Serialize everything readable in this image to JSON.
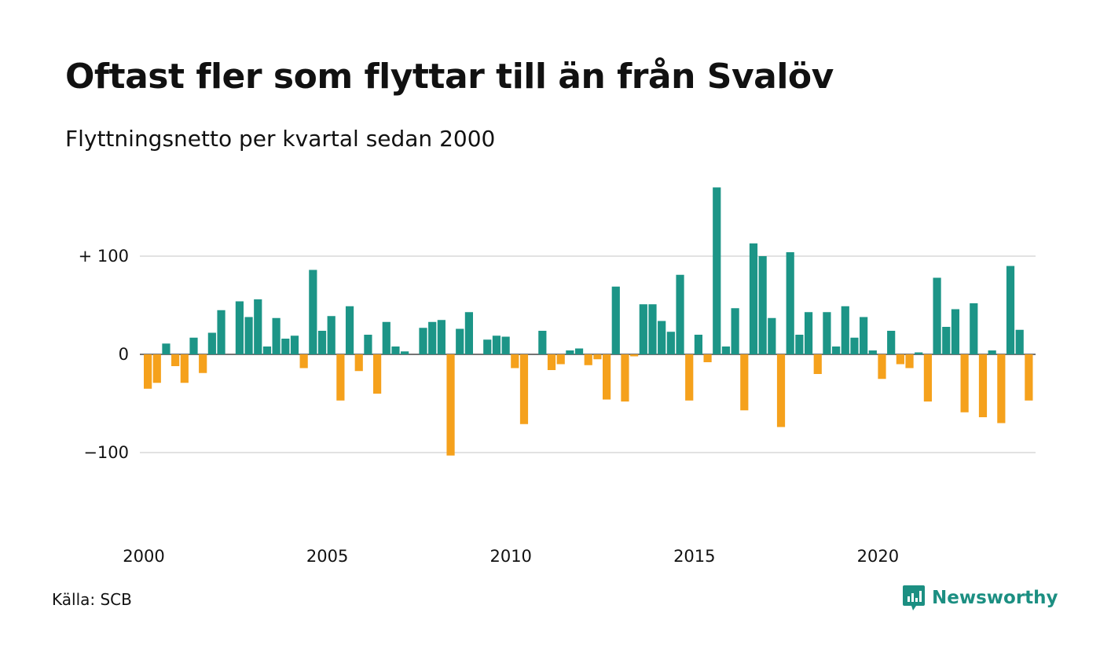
{
  "title": "Oftast fler som flyttar till än från Svalöv",
  "subtitle": "Flyttningsnetto per kvartal sedan 2000",
  "source": "Källa: SCB",
  "brand": {
    "name": "Newsworthy",
    "icon": "newsworthy-logo-icon",
    "color": "#1c8f82"
  },
  "colors": {
    "positive": "#1c9587",
    "negative": "#f5a11c",
    "grid": "#e2e2e2"
  },
  "chart_data": {
    "type": "bar",
    "title": "Oftast fler som flyttar till än från Svalöv",
    "subtitle": "Flyttningsnetto per kvartal sedan 2000",
    "xlabel": "",
    "ylabel": "",
    "start_year": 2000,
    "periods_per_year": 4,
    "x_ticks": [
      "2000",
      "2005",
      "2010",
      "2015",
      "2020"
    ],
    "y_ticks": [
      {
        "value": 100,
        "label": "+ 100"
      },
      {
        "value": 0,
        "label": "0"
      },
      {
        "value": -100,
        "label": "−100"
      }
    ],
    "ylim": [
      -170,
      170
    ],
    "grid": true,
    "values": [
      -35,
      -29,
      11,
      -12,
      -29,
      17,
      -19,
      22,
      45,
      0,
      54,
      38,
      56,
      8,
      37,
      16,
      19,
      -14,
      86,
      24,
      39,
      -47,
      49,
      -17,
      20,
      -40,
      33,
      8,
      3,
      0,
      27,
      33,
      35,
      -103,
      26,
      43,
      0,
      15,
      19,
      18,
      -14,
      -71,
      0,
      24,
      -16,
      -10,
      4,
      6,
      -11,
      -5,
      -46,
      69,
      -48,
      -2,
      51,
      51,
      34,
      23,
      81,
      -47,
      20,
      -8,
      170,
      8,
      47,
      -57,
      113,
      100,
      37,
      -74,
      104,
      20,
      43,
      -20,
      43,
      8,
      49,
      17,
      38,
      4,
      -25,
      24,
      -10,
      -14,
      2,
      -48,
      78,
      28,
      46,
      -59,
      52,
      -64,
      4,
      -70,
      90,
      25,
      -47
    ]
  }
}
